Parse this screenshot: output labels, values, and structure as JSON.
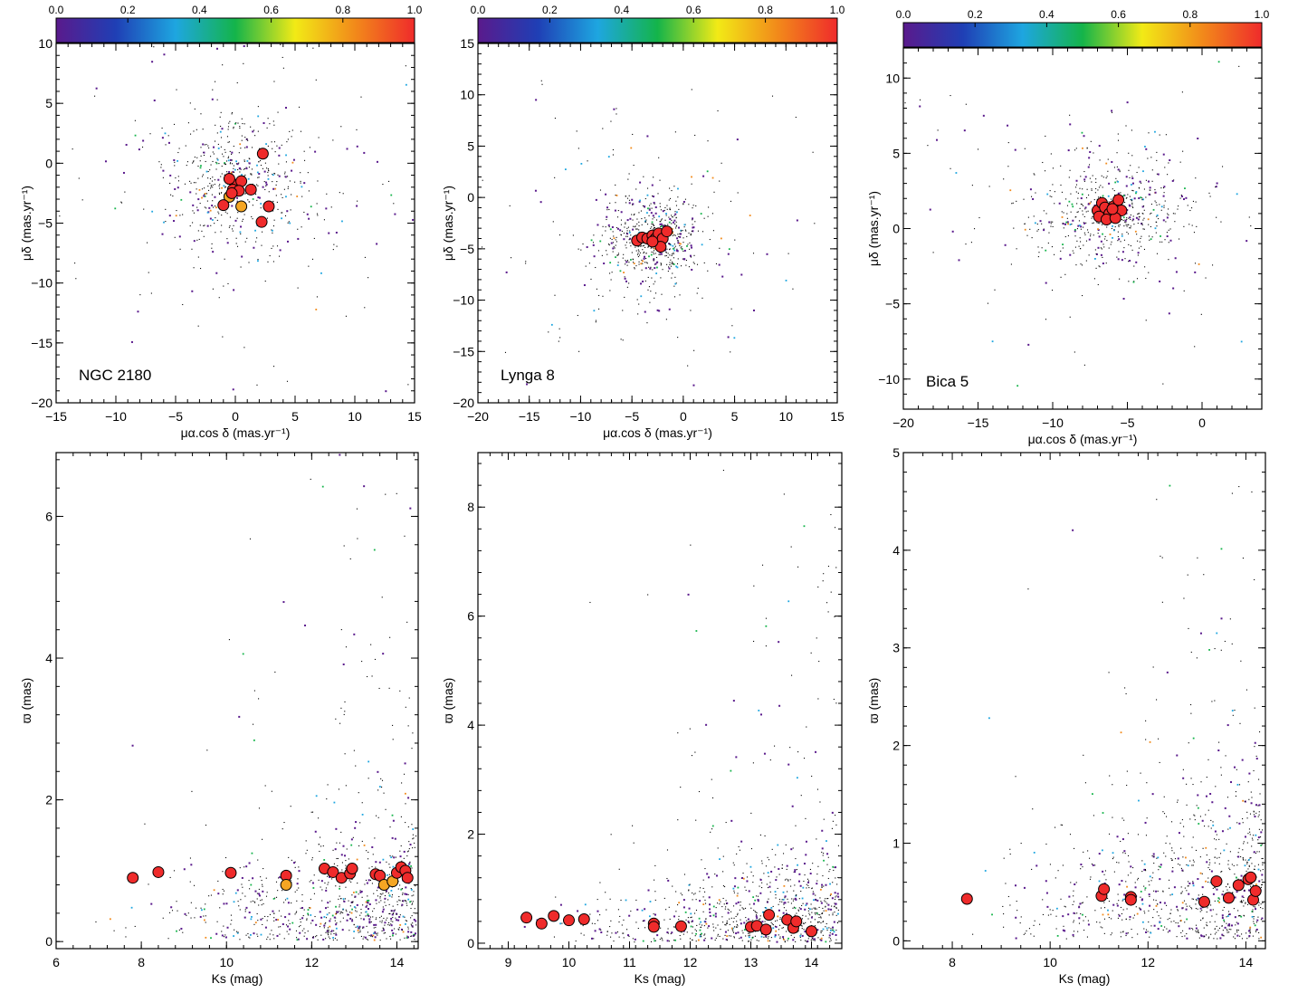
{
  "colorbar": {
    "ticks": [
      "0.0",
      "0.2",
      "0.4",
      "0.6",
      "0.8",
      "1.0"
    ],
    "stops": [
      "#5a1a8c",
      "#1f3fb5",
      "#1ea6e0",
      "#14b44a",
      "#f2ea16",
      "#f28a1a",
      "#ef2b2b"
    ]
  },
  "colors": {
    "member": "#ef2b2b",
    "partial": "#f5a623",
    "field": "#000000"
  },
  "chart_data": [
    {
      "type": "scatter",
      "panel": "NGC 2180 proper motions",
      "annotation": "NGC 2180",
      "xlabel": "μα.cos δ (mas.yr⁻¹)",
      "ylabel": "μδ (mas.yr⁻¹)",
      "xlim": [
        -15,
        15
      ],
      "ylim": [
        -20,
        10
      ],
      "xticks": [
        -15,
        -10,
        -5,
        0,
        5,
        10,
        15
      ],
      "yticks": [
        -20,
        -15,
        -10,
        -5,
        0,
        5,
        10
      ],
      "members": [
        {
          "x": 0.0,
          "y": -1.8,
          "p": 1.0
        },
        {
          "x": -0.5,
          "y": -1.3,
          "p": 1.0
        },
        {
          "x": 0.5,
          "y": -1.5,
          "p": 1.0
        },
        {
          "x": -0.2,
          "y": -2.2,
          "p": 1.0
        },
        {
          "x": 0.3,
          "y": -2.3,
          "p": 0.95
        },
        {
          "x": 2.3,
          "y": 0.8,
          "p": 1.0
        },
        {
          "x": 1.3,
          "y": -2.2,
          "p": 1.0
        },
        {
          "x": -0.5,
          "y": -2.8,
          "p": 0.85
        },
        {
          "x": -1.0,
          "y": -3.5,
          "p": 1.0
        },
        {
          "x": 0.5,
          "y": -3.6,
          "p": 0.8
        },
        {
          "x": 2.8,
          "y": -3.6,
          "p": 1.0
        },
        {
          "x": 2.2,
          "y": -4.9,
          "p": 1.0
        },
        {
          "x": -0.3,
          "y": -2.5,
          "p": 1.0
        }
      ],
      "field_center": [
        0,
        -1.5
      ],
      "field_spread": [
        3.2,
        3.0
      ]
    },
    {
      "type": "scatter",
      "panel": "Lynga 8 proper motions",
      "annotation": "Lynga 8",
      "xlabel": "μα.cos δ (mas.yr⁻¹)",
      "ylabel": "μδ (mas.yr⁻¹)",
      "xlim": [
        -20,
        15
      ],
      "ylim": [
        -20,
        15
      ],
      "xticks": [
        -20,
        -15,
        -10,
        -5,
        0,
        5,
        10,
        15
      ],
      "yticks": [
        -20,
        -15,
        -10,
        -5,
        0,
        5,
        10,
        15
      ],
      "members": [
        {
          "x": -4.5,
          "y": -4.2,
          "p": 1.0
        },
        {
          "x": -4.0,
          "y": -3.9,
          "p": 1.0
        },
        {
          "x": -3.5,
          "y": -4.0,
          "p": 1.0
        },
        {
          "x": -3.0,
          "y": -3.7,
          "p": 1.0
        },
        {
          "x": -2.7,
          "y": -4.0,
          "p": 1.0
        },
        {
          "x": -2.4,
          "y": -3.5,
          "p": 1.0
        },
        {
          "x": -2.0,
          "y": -4.0,
          "p": 1.0
        },
        {
          "x": -1.6,
          "y": -3.3,
          "p": 1.0
        },
        {
          "x": -2.2,
          "y": -4.8,
          "p": 1.0
        },
        {
          "x": -3.0,
          "y": -4.3,
          "p": 1.0
        }
      ],
      "field_center": [
        -3,
        -4
      ],
      "field_spread": [
        2.4,
        2.2
      ]
    },
    {
      "type": "scatter",
      "panel": "Bica 5 proper motions",
      "annotation": "Bica 5",
      "xlabel": "μα.cos δ (mas.yr⁻¹)",
      "ylabel": "μδ (mas.yr⁻¹)",
      "xlim": [
        -20,
        4
      ],
      "ylim": [
        -12,
        12
      ],
      "xticks": [
        -20,
        -15,
        -10,
        -5,
        0
      ],
      "yticks": [
        -10,
        -5,
        0,
        5,
        10
      ],
      "members": [
        {
          "x": -7.0,
          "y": 1.2,
          "p": 1.0
        },
        {
          "x": -6.7,
          "y": 1.7,
          "p": 1.0
        },
        {
          "x": -6.5,
          "y": 1.4,
          "p": 1.0
        },
        {
          "x": -6.2,
          "y": 1.0,
          "p": 1.0
        },
        {
          "x": -5.9,
          "y": 1.5,
          "p": 1.0
        },
        {
          "x": -5.6,
          "y": 1.9,
          "p": 1.0
        },
        {
          "x": -5.4,
          "y": 1.2,
          "p": 1.0
        },
        {
          "x": -6.9,
          "y": 0.8,
          "p": 1.0
        },
        {
          "x": -6.4,
          "y": 0.6,
          "p": 1.0
        },
        {
          "x": -5.8,
          "y": 0.7,
          "p": 1.0
        },
        {
          "x": -6.0,
          "y": 1.3,
          "p": 1.0
        }
      ],
      "field_center": [
        -6,
        1.2
      ],
      "field_spread": [
        2.8,
        1.8
      ]
    },
    {
      "type": "scatter",
      "panel": "NGC 2180 parallax vs Ks",
      "xlabel": "Ks (mag)",
      "ylabel": "ϖ (mas)",
      "xlim": [
        6,
        14.5
      ],
      "ylim": [
        -0.1,
        6.9
      ],
      "xticks": [
        6,
        8,
        10,
        12,
        14
      ],
      "yticks": [
        0,
        2,
        4,
        6
      ],
      "members": [
        {
          "x": 7.8,
          "y": 0.9,
          "p": 1.0
        },
        {
          "x": 8.4,
          "y": 0.98,
          "p": 1.0
        },
        {
          "x": 10.1,
          "y": 0.97,
          "p": 1.0
        },
        {
          "x": 11.4,
          "y": 0.93,
          "p": 1.0
        },
        {
          "x": 11.4,
          "y": 0.8,
          "p": 0.8
        },
        {
          "x": 12.3,
          "y": 1.03,
          "p": 1.0
        },
        {
          "x": 12.5,
          "y": 0.98,
          "p": 1.0
        },
        {
          "x": 12.7,
          "y": 0.9,
          "p": 1.0
        },
        {
          "x": 12.9,
          "y": 0.96,
          "p": 1.0
        },
        {
          "x": 12.95,
          "y": 1.03,
          "p": 1.0
        },
        {
          "x": 13.5,
          "y": 0.95,
          "p": 1.0
        },
        {
          "x": 13.6,
          "y": 0.93,
          "p": 1.0
        },
        {
          "x": 13.7,
          "y": 0.8,
          "p": 0.8
        },
        {
          "x": 13.9,
          "y": 0.85,
          "p": 0.8
        },
        {
          "x": 14.0,
          "y": 0.97,
          "p": 1.0
        },
        {
          "x": 14.1,
          "y": 1.05,
          "p": 1.0
        },
        {
          "x": 14.2,
          "y": 1.0,
          "p": 1.0
        },
        {
          "x": 14.25,
          "y": 0.9,
          "p": 1.0
        }
      ]
    },
    {
      "type": "scatter",
      "panel": "Lynga 8 parallax vs Ks",
      "xlabel": "Ks (mag)",
      "ylabel": "ϖ (mas)",
      "xlim": [
        8.5,
        14.5
      ],
      "ylim": [
        -0.1,
        9.0
      ],
      "xticks": [
        9,
        10,
        11,
        12,
        13,
        14
      ],
      "yticks": [
        0,
        2,
        4,
        6,
        8
      ],
      "members": [
        {
          "x": 9.3,
          "y": 0.47,
          "p": 1.0
        },
        {
          "x": 9.55,
          "y": 0.36,
          "p": 1.0
        },
        {
          "x": 9.75,
          "y": 0.5,
          "p": 1.0
        },
        {
          "x": 10.0,
          "y": 0.42,
          "p": 1.0
        },
        {
          "x": 10.25,
          "y": 0.44,
          "p": 1.0
        },
        {
          "x": 11.4,
          "y": 0.36,
          "p": 1.0
        },
        {
          "x": 11.4,
          "y": 0.3,
          "p": 1.0
        },
        {
          "x": 11.85,
          "y": 0.31,
          "p": 1.0
        },
        {
          "x": 13.0,
          "y": 0.3,
          "p": 1.0
        },
        {
          "x": 13.1,
          "y": 0.32,
          "p": 1.0
        },
        {
          "x": 13.25,
          "y": 0.25,
          "p": 1.0
        },
        {
          "x": 13.3,
          "y": 0.52,
          "p": 1.0
        },
        {
          "x": 13.6,
          "y": 0.43,
          "p": 1.0
        },
        {
          "x": 13.7,
          "y": 0.28,
          "p": 1.0
        },
        {
          "x": 13.75,
          "y": 0.4,
          "p": 1.0
        },
        {
          "x": 14.0,
          "y": 0.22,
          "p": 1.0
        }
      ]
    },
    {
      "type": "scatter",
      "panel": "Bica 5 parallax vs Ks",
      "xlabel": "Ks (mag)",
      "ylabel": "ϖ (mas)",
      "xlim": [
        7,
        14.4
      ],
      "ylim": [
        -0.08,
        5.0
      ],
      "xticks": [
        8,
        10,
        12,
        14
      ],
      "yticks": [
        0,
        1,
        2,
        3,
        4,
        5
      ],
      "members": [
        {
          "x": 8.3,
          "y": 0.43,
          "p": 1.0
        },
        {
          "x": 11.05,
          "y": 0.46,
          "p": 1.0
        },
        {
          "x": 11.1,
          "y": 0.53,
          "p": 1.0
        },
        {
          "x": 11.65,
          "y": 0.45,
          "p": 1.0
        },
        {
          "x": 11.65,
          "y": 0.42,
          "p": 1.0
        },
        {
          "x": 13.15,
          "y": 0.4,
          "p": 1.0
        },
        {
          "x": 13.4,
          "y": 0.61,
          "p": 1.0
        },
        {
          "x": 13.65,
          "y": 0.44,
          "p": 1.0
        },
        {
          "x": 13.85,
          "y": 0.57,
          "p": 1.0
        },
        {
          "x": 14.05,
          "y": 0.63,
          "p": 1.0
        },
        {
          "x": 14.1,
          "y": 0.65,
          "p": 1.0
        },
        {
          "x": 14.15,
          "y": 0.42,
          "p": 1.0
        },
        {
          "x": 14.2,
          "y": 0.51,
          "p": 1.0
        }
      ]
    }
  ]
}
